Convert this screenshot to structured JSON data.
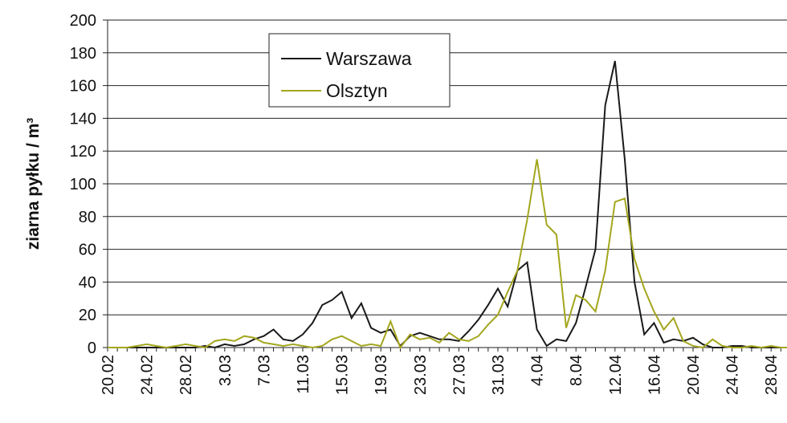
{
  "chart_data": {
    "type": "line",
    "ylabel": "ziarna pyłku / m³",
    "categories": [
      "20.02",
      null,
      null,
      null,
      "24.02",
      null,
      null,
      null,
      "28.02",
      null,
      null,
      null,
      "3.03",
      null,
      null,
      null,
      "7.03",
      null,
      null,
      null,
      "11.03",
      null,
      null,
      null,
      "15.03",
      null,
      null,
      null,
      "19.03",
      null,
      null,
      null,
      "23.03",
      null,
      null,
      null,
      "27.03",
      null,
      null,
      null,
      "31.03",
      null,
      null,
      null,
      "4.04",
      null,
      null,
      null,
      "8.04",
      null,
      null,
      null,
      "12.04",
      null,
      null,
      null,
      "16.04",
      null,
      null,
      null,
      "20.04",
      null,
      null,
      null,
      "24.04",
      null,
      null,
      null,
      "28.04",
      null,
      null
    ],
    "series": [
      {
        "name": "Warszawa",
        "color": "#1a1a1a",
        "values": [
          0,
          0,
          0,
          0,
          0,
          0,
          0,
          0,
          0,
          0,
          1,
          0,
          2,
          1,
          2,
          5,
          7,
          11,
          5,
          4,
          8,
          15,
          26,
          29,
          34,
          18,
          27,
          12,
          9,
          11,
          1,
          7,
          9,
          7,
          5,
          5,
          4,
          10,
          17,
          26,
          36,
          25,
          47,
          52,
          11,
          1,
          5,
          4,
          15,
          37,
          60,
          148,
          175,
          115,
          40,
          8,
          15,
          3,
          5,
          4,
          6,
          2,
          0,
          0,
          1,
          1,
          0,
          0,
          0,
          0,
          0
        ]
      },
      {
        "name": "Olsztyn",
        "color": "#a4a61e",
        "values": [
          0,
          0,
          0,
          1,
          2,
          1,
          0,
          1,
          2,
          1,
          0,
          4,
          5,
          4,
          7,
          6,
          3,
          2,
          1,
          2,
          1,
          0,
          1,
          5,
          7,
          4,
          1,
          2,
          1,
          16,
          0,
          8,
          5,
          6,
          3,
          9,
          5,
          4,
          7,
          14,
          20,
          34,
          47,
          78,
          115,
          75,
          69,
          12,
          32,
          29,
          22,
          47,
          89,
          91,
          54,
          36,
          22,
          11,
          18,
          4,
          1,
          0,
          5,
          1,
          0,
          0,
          1,
          0,
          1,
          0,
          0
        ]
      }
    ],
    "ylim": [
      0,
      200
    ],
    "yticks": [
      0,
      20,
      40,
      60,
      80,
      100,
      120,
      140,
      160,
      180,
      200
    ],
    "grid": true
  }
}
